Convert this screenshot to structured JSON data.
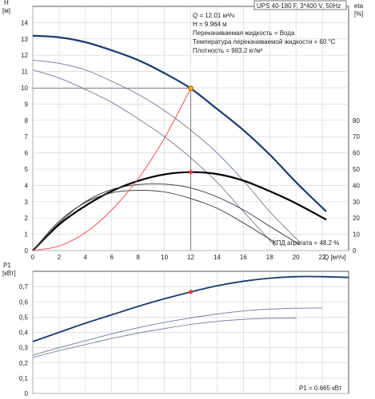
{
  "chart_data": [
    {
      "type": "line",
      "title": "UPS 40-180 F, 3*400 V, 50Hz",
      "xlabel": "Q [м³/ч]",
      "ylabel": "H [м]",
      "y2label": "eta [%]",
      "xlim": [
        0,
        24
      ],
      "ylim": [
        0,
        15
      ],
      "y2lim": [
        0,
        150
      ],
      "xticks": [
        "0",
        "2",
        "4",
        "6",
        "8",
        "10",
        "12",
        "14",
        "16",
        "18",
        "20",
        "22"
      ],
      "yticks": [
        "0",
        "1",
        "2",
        "3",
        "4",
        "5",
        "6",
        "7",
        "8",
        "9",
        "10",
        "11",
        "12",
        "13",
        "14"
      ],
      "y2ticks": [
        "0",
        "10",
        "20",
        "30",
        "40",
        "50",
        "60",
        "70",
        "80"
      ],
      "grid": true,
      "info_lines": [
        "Q = 12.01 м³/ч",
        "H = 9.964 м",
        "Перекачиваемая жидкость = Вода",
        "Температура перекачиваемой жидкости = 60 °C",
        "Плотность = 983.2 кг/м³"
      ],
      "efficiency_label": "КПД агрегата = 48.2 %",
      "operating_point": {
        "x": 12.01,
        "y": 9.964
      },
      "efficiency_point": {
        "x": 12.0,
        "y": 4.82
      },
      "series": [
        {
          "role": "head-max",
          "color": "#1a3a6e",
          "width": 2.2,
          "x": [
            0,
            2,
            4,
            6,
            8,
            10,
            12,
            14,
            16,
            18,
            20,
            22.3
          ],
          "y": [
            13.2,
            13.1,
            12.8,
            12.3,
            11.7,
            10.9,
            9.96,
            8.7,
            7.4,
            5.9,
            4.2,
            2.4
          ]
        },
        {
          "role": "head-speed-2",
          "color": "#7a86a3",
          "width": 1,
          "x": [
            0,
            2,
            4,
            6,
            8,
            10,
            12,
            14,
            16,
            18,
            20.3
          ],
          "y": [
            11.7,
            11.5,
            11.1,
            10.4,
            9.6,
            8.6,
            7.4,
            6.0,
            4.3,
            2.4,
            0.5
          ]
        },
        {
          "role": "head-speed-3",
          "color": "#7a86a3",
          "width": 1,
          "x": [
            0,
            2,
            4,
            6,
            8,
            10,
            12,
            14,
            16,
            18.4
          ],
          "y": [
            11.1,
            10.6,
            9.9,
            9.1,
            8.1,
            7.0,
            5.7,
            4.2,
            2.4,
            0.3
          ]
        },
        {
          "role": "efficiency-max",
          "color": "#000000",
          "width": 2.2,
          "x": [
            0,
            2,
            4,
            6,
            8,
            10,
            12,
            14,
            16,
            18,
            20,
            22.3
          ],
          "y": [
            0,
            1.6,
            2.75,
            3.65,
            4.28,
            4.68,
            4.82,
            4.7,
            4.3,
            3.65,
            2.9,
            1.9
          ]
        },
        {
          "role": "efficiency-2",
          "color": "#444444",
          "width": 1,
          "x": [
            0,
            2,
            4,
            6,
            8,
            10,
            12,
            14,
            16,
            18,
            20.3
          ],
          "y": [
            0,
            1.7,
            3.0,
            3.75,
            4.05,
            4.08,
            3.85,
            3.3,
            2.5,
            1.5,
            0.35
          ]
        },
        {
          "role": "efficiency-3",
          "color": "#444444",
          "width": 1,
          "x": [
            0,
            2,
            4,
            6,
            8,
            10,
            12,
            14,
            16,
            18.4
          ],
          "y": [
            0,
            1.8,
            2.95,
            3.55,
            3.7,
            3.6,
            3.2,
            2.6,
            1.7,
            0.5
          ]
        },
        {
          "role": "system-curve",
          "color": "#ef5350",
          "width": 1,
          "x": [
            0,
            2,
            4,
            6,
            8,
            10,
            12.01
          ],
          "y": [
            0,
            0.28,
            1.1,
            2.5,
            4.4,
            6.9,
            9.964
          ]
        }
      ]
    },
    {
      "type": "line",
      "ylabel": "P1 [кВт]",
      "xlim": [
        0,
        24
      ],
      "ylim": [
        0,
        0.8
      ],
      "yticks": [
        "0",
        "0,1",
        "0,2",
        "0,3",
        "0,4",
        "0,5",
        "0,6",
        "0,7"
      ],
      "grid": true,
      "power_label": "P1 = 0.665 кВт",
      "operating_point": {
        "x": 12.01,
        "y": 0.665
      },
      "series": [
        {
          "role": "power-max",
          "color": "#1a3a6e",
          "width": 1.8,
          "x": [
            0,
            2,
            4,
            6,
            8,
            10,
            12,
            14,
            16,
            18,
            20,
            22,
            24
          ],
          "y": [
            0.34,
            0.4,
            0.46,
            0.515,
            0.57,
            0.62,
            0.665,
            0.705,
            0.735,
            0.755,
            0.765,
            0.765,
            0.76
          ]
        },
        {
          "role": "power-2",
          "color": "#7a86a3",
          "width": 1,
          "x": [
            0,
            2,
            4,
            6,
            8,
            10,
            12,
            14,
            16,
            18,
            20,
            22
          ],
          "y": [
            0.25,
            0.3,
            0.345,
            0.39,
            0.43,
            0.465,
            0.495,
            0.52,
            0.54,
            0.552,
            0.558,
            0.56
          ]
        },
        {
          "role": "power-3",
          "color": "#7a86a3",
          "width": 1,
          "x": [
            0,
            2,
            4,
            6,
            8,
            10,
            12,
            14,
            16,
            18,
            20
          ],
          "y": [
            0.235,
            0.28,
            0.32,
            0.36,
            0.395,
            0.425,
            0.452,
            0.472,
            0.485,
            0.492,
            0.494
          ]
        }
      ]
    }
  ]
}
